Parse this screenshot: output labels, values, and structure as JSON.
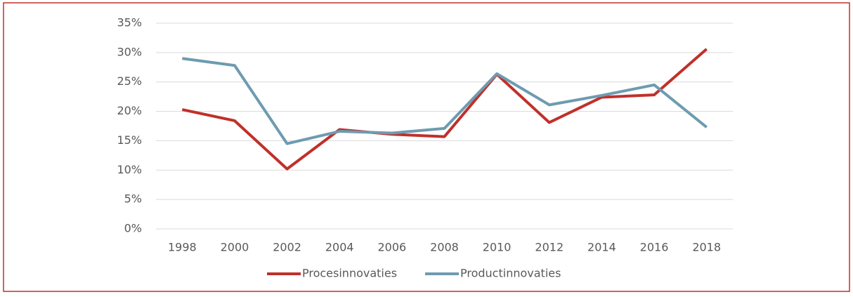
{
  "chart_data": {
    "type": "line",
    "categories": [
      "1998",
      "2000",
      "2002",
      "2004",
      "2006",
      "2008",
      "2010",
      "2012",
      "2014",
      "2016",
      "2018"
    ],
    "series": [
      {
        "name": "Procesinnovaties",
        "color": "#c0302a",
        "values": [
          20.3,
          18.4,
          10.2,
          16.9,
          16.1,
          15.7,
          26.3,
          18.1,
          22.4,
          22.8,
          30.6
        ]
      },
      {
        "name": "Productinnovaties",
        "color": "#6e9bb0",
        "values": [
          29.0,
          27.8,
          14.5,
          16.6,
          16.3,
          17.1,
          26.4,
          21.1,
          22.7,
          24.5,
          17.3
        ]
      }
    ],
    "ylim": [
      0,
      35
    ],
    "yticks": [
      {
        "value": 0,
        "label": "0%"
      },
      {
        "value": 5,
        "label": "5%"
      },
      {
        "value": 10,
        "label": "10%"
      },
      {
        "value": 15,
        "label": "15%"
      },
      {
        "value": 20,
        "label": "20%"
      },
      {
        "value": 25,
        "label": "25%"
      },
      {
        "value": 30,
        "label": "30%"
      },
      {
        "value": 35,
        "label": "35%"
      }
    ],
    "grid": true,
    "legend": "bottom"
  }
}
